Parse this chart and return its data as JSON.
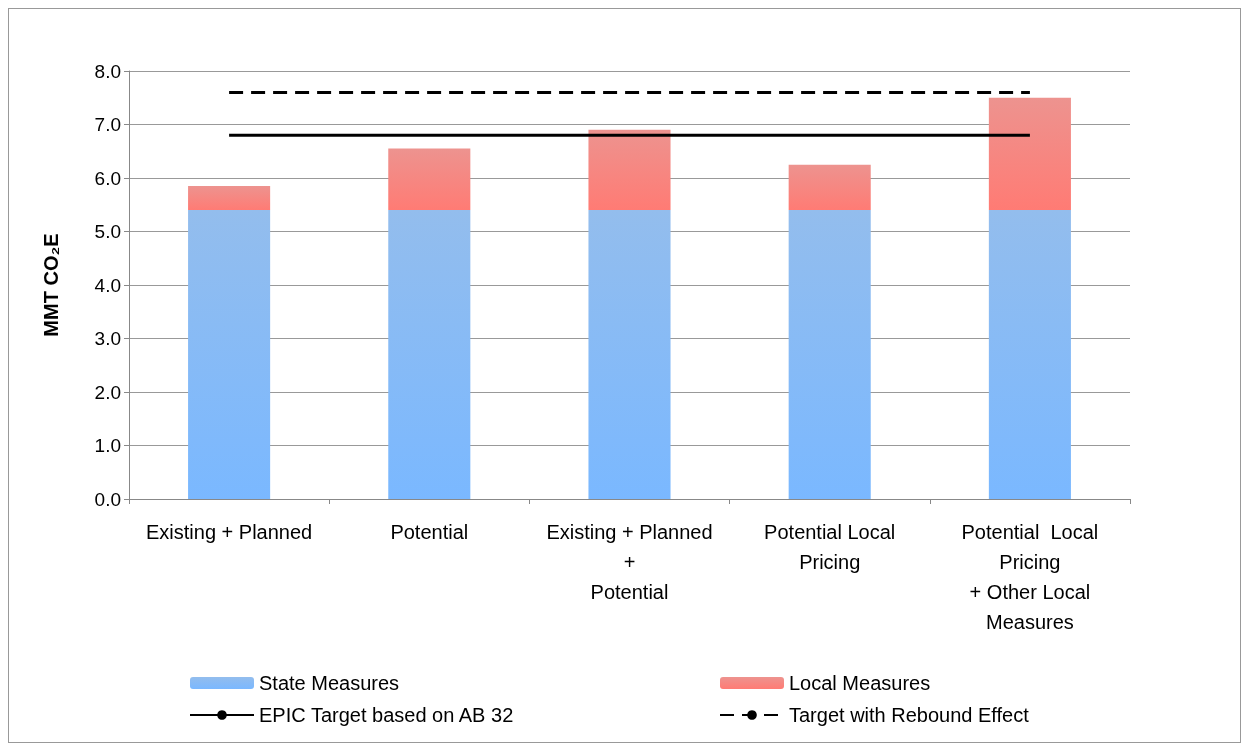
{
  "chart_data": {
    "type": "bar",
    "stacked": true,
    "ylabel": "MMT CO₂E",
    "categories": [
      "Existing + Planned",
      "Potential",
      "Existing + Planned\n+\nPotential",
      "Potential Local\nPricing",
      "Potential  Local\nPricing\n+ Other Local\nMeasures"
    ],
    "series": [
      {
        "name": "State Measures",
        "color": "#6fa8e8",
        "values": [
          5.4,
          5.4,
          5.4,
          5.4,
          5.4
        ]
      },
      {
        "name": "Local Measures",
        "color": "#e8706a",
        "values": [
          0.45,
          1.15,
          1.5,
          0.85,
          2.1
        ]
      }
    ],
    "ref_lines": [
      {
        "axis": "y",
        "value": 6.8,
        "label": "EPIC Target based on AB 32",
        "color": "#000000",
        "line_style": "solid"
      },
      {
        "axis": "y",
        "value": 7.6,
        "label": "Target with Rebound Effect",
        "color": "#000000",
        "line_style": "dashed"
      }
    ],
    "ylim": [
      0,
      8
    ],
    "yticks": [
      {
        "value": 0,
        "label": "0.0"
      },
      {
        "value": 1,
        "label": "1.0"
      },
      {
        "value": 2,
        "label": "2.0"
      },
      {
        "value": 3,
        "label": "3.0"
      },
      {
        "value": 4,
        "label": "4.0"
      },
      {
        "value": 5,
        "label": "5.0"
      },
      {
        "value": 6,
        "label": "6.0"
      },
      {
        "value": 7,
        "label": "7.0"
      },
      {
        "value": 8,
        "label": "8.0"
      }
    ],
    "grid": "y",
    "legend": "bottom"
  }
}
